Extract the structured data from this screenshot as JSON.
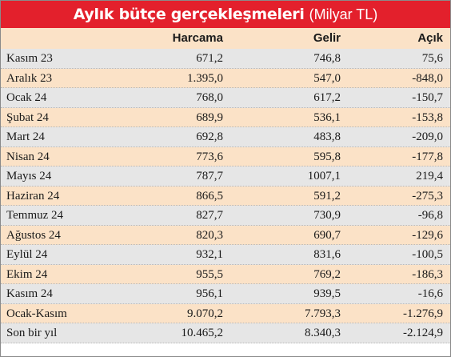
{
  "title": {
    "main": "Aylık bütçe gerçekleşmeleri",
    "sub": "(Milyar TL)"
  },
  "colors": {
    "title_bg": "#e3202c",
    "header_bg": "#fbe2c7",
    "row_shade": "#e6e6e6"
  },
  "chart_data": {
    "type": "table",
    "title": "Aylık bütçe gerçekleşmeleri (Milyar TL)",
    "columns": [
      "",
      "Harcama",
      "Gelir",
      "Açık"
    ],
    "rows": [
      {
        "label": "Kasım 23",
        "harcama": "671,2",
        "gelir": "746,8",
        "acik": "75,6"
      },
      {
        "label": "Aralık 23",
        "harcama": "1.395,0",
        "gelir": "547,0",
        "acik": "-848,0"
      },
      {
        "label": "Ocak 24",
        "harcama": "768,0",
        "gelir": "617,2",
        "acik": "-150,7"
      },
      {
        "label": "Şubat 24",
        "harcama": "689,9",
        "gelir": "536,1",
        "acik": "-153,8"
      },
      {
        "label": "Mart 24",
        "harcama": "692,8",
        "gelir": "483,8",
        "acik": "-209,0"
      },
      {
        "label": "Nisan 24",
        "harcama": "773,6",
        "gelir": "595,8",
        "acik": "-177,8"
      },
      {
        "label": "Mayıs 24",
        "harcama": "787,7",
        "gelir": "1007,1",
        "acik": "219,4"
      },
      {
        "label": "Haziran 24",
        "harcama": "866,5",
        "gelir": "591,2",
        "acik": "-275,3"
      },
      {
        "label": "Temmuz 24",
        "harcama": "827,7",
        "gelir": "730,9",
        "acik": "-96,8"
      },
      {
        "label": "Ağustos 24",
        "harcama": "820,3",
        "gelir": "690,7",
        "acik": "-129,6"
      },
      {
        "label": "Eylül 24",
        "harcama": "932,1",
        "gelir": "831,6",
        "acik": "-100,5"
      },
      {
        "label": "Ekim 24",
        "harcama": "955,5",
        "gelir": "769,2",
        "acik": "-186,3"
      },
      {
        "label": "Kasım 24",
        "harcama": "956,1",
        "gelir": "939,5",
        "acik": "-16,6"
      },
      {
        "label": "Ocak-Kasım",
        "harcama": "9.070,2",
        "gelir": "7.793,3",
        "acik": "-1.276,9"
      },
      {
        "label": "Son bir yıl",
        "harcama": "10.465,2",
        "gelir": "8.340,3",
        "acik": "-2.124,9"
      }
    ]
  }
}
